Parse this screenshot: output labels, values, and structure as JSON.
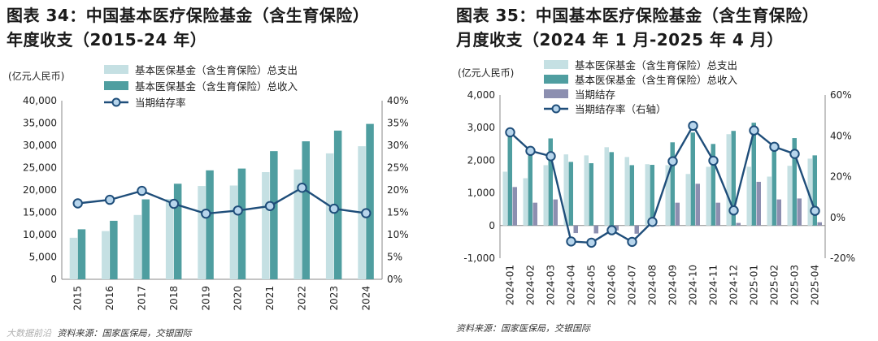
{
  "left": {
    "title_line1": "图表 34：中国基本医疗保险基金（含生育保险）",
    "title_line2": "年度收支（2015-24 年）",
    "source": "资料来源：国家医保局，交银国际",
    "watermark": "大数据前沿"
  },
  "right": {
    "title_line1": "图表 35：中国基本医疗保险基金（含生育保险）",
    "title_line2": "月度收支（2024 年 1 月-2025 年 4 月）",
    "source": "资料来源：国家医保局，交银国际"
  },
  "colors": {
    "expense": "#c5e0e3",
    "income": "#4f9ea0",
    "balance": "#8c8fb0",
    "rate": "#1f4e7a",
    "marker_fill": "#b7d5ec"
  },
  "chart_data": [
    {
      "type": "bar",
      "title": "图表 34：中国基本医疗保险基金（含生育保险）年度收支（2015-24 年）",
      "y_unit_label": "(亿元人民币)",
      "categories": [
        "2015",
        "2016",
        "2017",
        "2018",
        "2019",
        "2020",
        "2021",
        "2022",
        "2023",
        "2024"
      ],
      "ylim": [
        0,
        40000
      ],
      "y_ticks": [
        "0",
        "5,000",
        "10,000",
        "15,000",
        "20,000",
        "25,000",
        "30,000",
        "35,000",
        "40,000"
      ],
      "y2lim": [
        0,
        40
      ],
      "y2_ticks": [
        "0%",
        "5%",
        "10%",
        "15%",
        "20%",
        "25%",
        "30%",
        "35%",
        "40%"
      ],
      "legend_position": "top",
      "series": [
        {
          "name": "基本医保基金（含生育保险）总支出",
          "kind": "bar",
          "values": [
            9300,
            10800,
            14400,
            18000,
            20900,
            21000,
            24000,
            24600,
            28200,
            29800
          ]
        },
        {
          "name": "基本医保基金（含生育保险）总收入",
          "kind": "bar",
          "values": [
            11200,
            13100,
            17900,
            21400,
            24400,
            24800,
            28700,
            30900,
            33300,
            34800
          ]
        },
        {
          "name": "当期结存率",
          "kind": "line",
          "axis": "right",
          "values": [
            17.0,
            17.8,
            19.8,
            16.9,
            14.7,
            15.4,
            16.4,
            20.5,
            15.8,
            14.8
          ]
        }
      ]
    },
    {
      "type": "bar",
      "title": "图表 35：中国基本医疗保险基金（含生育保险）月度收支（2024 年 1 月-2025 年 4 月）",
      "y_unit_label": "(亿元人民币)",
      "categories": [
        "2024-01",
        "2024-02",
        "2024-03",
        "2024-04",
        "2024-05",
        "2024-06",
        "2024-07",
        "2024-08",
        "2024-09",
        "2024-10",
        "2024-11",
        "2024-12",
        "2025-01",
        "2025-02",
        "2025-03",
        "2025-04"
      ],
      "ylim": [
        -1000,
        4000
      ],
      "y_ticks": [
        "-1,000",
        "0",
        "1,000",
        "2,000",
        "3,000",
        "4,000"
      ],
      "y2lim": [
        -20,
        60
      ],
      "y2_ticks": [
        "-20%",
        "0%",
        "20%",
        "40%",
        "60%"
      ],
      "legend_position": "top",
      "series": [
        {
          "name": "基本医保基金（含生育保险）总支出",
          "kind": "bar",
          "values": [
            1650,
            1450,
            1850,
            2180,
            2150,
            2400,
            2100,
            1880,
            1850,
            1580,
            1800,
            2800,
            1800,
            1500,
            1830,
            2050
          ]
        },
        {
          "name": "基本医保基金（含生育保险）总收入",
          "kind": "bar",
          "values": [
            2830,
            2150,
            2670,
            1950,
            1910,
            2250,
            1850,
            1860,
            2550,
            2850,
            2500,
            2900,
            3150,
            2350,
            2680,
            2150
          ]
        },
        {
          "name": "当期结存",
          "kind": "bar",
          "values": [
            1180,
            700,
            800,
            -230,
            -240,
            -150,
            -250,
            -20,
            700,
            1280,
            700,
            80,
            1340,
            800,
            830,
            100
          ]
        },
        {
          "name": "当期结存率（右轴）",
          "kind": "line",
          "axis": "right",
          "values": [
            41.7,
            32.6,
            30.0,
            -11.8,
            -12.4,
            -6.3,
            -12.0,
            -2.2,
            27.5,
            44.9,
            27.8,
            3.4,
            42.6,
            34.6,
            31.1,
            3.2
          ]
        }
      ]
    }
  ]
}
